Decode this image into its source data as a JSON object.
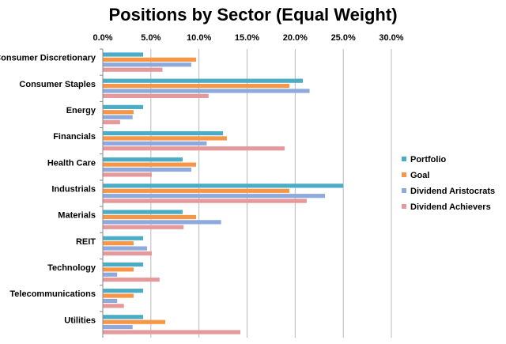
{
  "chart_data": {
    "type": "bar",
    "orientation": "horizontal",
    "title": "Positions by Sector (Equal Weight)",
    "xlabel": "",
    "ylabel": "",
    "xlim": [
      0,
      30
    ],
    "x_ticks": [
      "0.0%",
      "5.0%",
      "10.0%",
      "15.0%",
      "20.0%",
      "25.0%",
      "30.0%"
    ],
    "grid": true,
    "legend_position": "right",
    "categories": [
      "Consumer Discretionary",
      "Consumer Staples",
      "Energy",
      "Financials",
      "Health Care",
      "Industrials",
      "Materials",
      "REIT",
      "Technology",
      "Telecommunications",
      "Utilities"
    ],
    "series": [
      {
        "name": "Portfolio",
        "color": "#4BACC6",
        "values": [
          4.2,
          20.8,
          4.2,
          12.5,
          8.3,
          25.0,
          8.3,
          4.2,
          4.2,
          4.2,
          4.2
        ]
      },
      {
        "name": "Goal",
        "color": "#F79646",
        "values": [
          9.7,
          19.4,
          3.2,
          12.9,
          9.7,
          19.4,
          9.7,
          3.2,
          3.2,
          3.2,
          6.5
        ]
      },
      {
        "name": "Dividend Aristocrats",
        "color": "#8EA9DB",
        "values": [
          9.2,
          21.5,
          3.1,
          10.8,
          9.2,
          23.1,
          12.3,
          4.6,
          1.5,
          1.5,
          3.1
        ]
      },
      {
        "name": "Dividend Achievers",
        "color": "#E6999A",
        "values": [
          6.2,
          11.0,
          1.8,
          18.9,
          5.1,
          21.2,
          8.4,
          5.1,
          5.9,
          2.2,
          14.3
        ]
      }
    ]
  }
}
